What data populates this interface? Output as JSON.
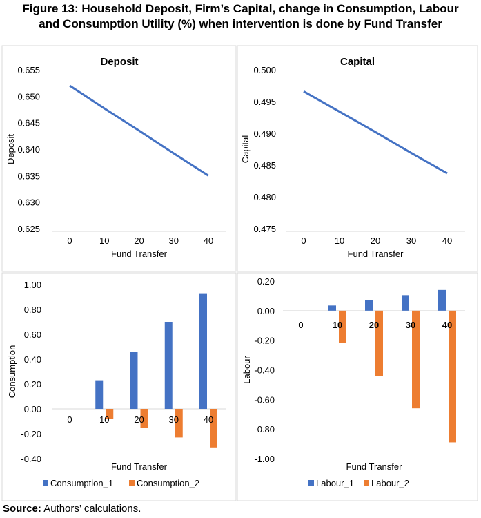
{
  "title": "Figure 13: Household Deposit, Firm’s Capital, change in Consumption, Labour and Consumption Utility (%) when intervention is done by Fund Transfer",
  "title_line1": "Figure 13: Household Deposit, Firm’s Capital, change in Consumption, Labour",
  "title_line2": "and Consumption Utility (%) when intervention is done by Fund Transfer",
  "source_label": "Source:",
  "source_text": " Authors’ calculations.",
  "colors": {
    "series1": "#4472C4",
    "series2": "#ED7D31"
  },
  "chart_data": [
    {
      "type": "line",
      "title": "Deposit",
      "xlabel": "Fund Transfer",
      "ylabel": "Deposit",
      "categories": [
        "0",
        "10",
        "20",
        "30",
        "40"
      ],
      "values": [
        0.652,
        0.6477,
        0.6435,
        0.6392,
        0.635
      ],
      "ylim": [
        0.625,
        0.655
      ],
      "yticks": [
        "0.655",
        "0.650",
        "0.645",
        "0.640",
        "0.635",
        "0.630",
        "0.625"
      ],
      "grid": false
    },
    {
      "type": "line",
      "title": "Capital",
      "xlabel": "Fund Transfer",
      "ylabel": "Capital",
      "categories": [
        "0",
        "10",
        "20",
        "30",
        "40"
      ],
      "values": [
        0.4966,
        0.4934,
        0.4902,
        0.4869,
        0.4837
      ],
      "ylim": [
        0.475,
        0.5
      ],
      "yticks": [
        "0.500",
        "0.495",
        "0.490",
        "0.485",
        "0.480",
        "0.475"
      ],
      "grid": false
    },
    {
      "type": "bar",
      "xlabel": "Fund Transfer",
      "ylabel": "Consumption",
      "categories": [
        "0",
        "10",
        "20",
        "30",
        "40"
      ],
      "series": [
        {
          "name": "Consumption_1",
          "values": [
            0,
            0.23,
            0.46,
            0.7,
            0.93
          ]
        },
        {
          "name": "Consumption_2",
          "values": [
            0,
            -0.08,
            -0.15,
            -0.23,
            -0.31
          ]
        }
      ],
      "ylim": [
        -0.4,
        1.0
      ],
      "yticks": [
        "1.00",
        "0.80",
        "0.60",
        "0.40",
        "0.20",
        "0.00",
        "-0.20",
        "-0.40"
      ],
      "legend": "bottom"
    },
    {
      "type": "bar",
      "xlabel": "Fund Transfer",
      "ylabel": "Labour",
      "categories": [
        "0",
        "10",
        "20",
        "30",
        "40"
      ],
      "series": [
        {
          "name": "Labour_1",
          "values": [
            0,
            0.035,
            0.07,
            0.105,
            0.14
          ]
        },
        {
          "name": "Labour_2",
          "values": [
            0,
            -0.22,
            -0.44,
            -0.66,
            -0.89
          ]
        }
      ],
      "ylim": [
        -1.0,
        0.2
      ],
      "yticks": [
        "0.20",
        "0.00",
        "-0.20",
        "-0.40",
        "-0.60",
        "-0.80",
        "-1.00"
      ],
      "legend": "bottom"
    }
  ]
}
